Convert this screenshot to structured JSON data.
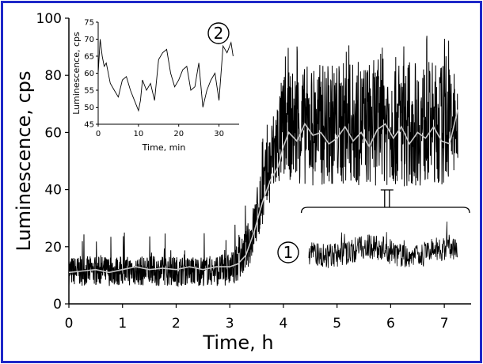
{
  "chart_data": [
    {
      "type": "line",
      "xlabel": "Time, h",
      "ylabel": "Luminescence, cps",
      "xlim": [
        0,
        7.5
      ],
      "ylim": [
        0,
        100
      ],
      "xticks": [
        "0",
        "1",
        "2",
        "3",
        "4",
        "5",
        "6",
        "7"
      ],
      "yticks": [
        "0",
        "20",
        "40",
        "60",
        "80",
        "100"
      ],
      "grid": false,
      "series": [
        {
          "role": "raw-signal",
          "color": "#000000",
          "envelope": {
            "x": [
              0,
              0.5,
              1,
              1.5,
              2,
              2.5,
              3,
              3.2,
              3.4,
              3.6,
              3.8,
              4,
              4.5,
              5,
              5.5,
              6,
              6.5,
              7,
              7.25
            ],
            "low": [
              6,
              6,
              6,
              6,
              6,
              6,
              6,
              8,
              14,
              25,
              35,
              42,
              40,
              40,
              40,
              40,
              40,
              40,
              40
            ],
            "high": [
              17,
              17,
              17,
              17,
              17,
              17,
              18,
              22,
              32,
              50,
              68,
              82,
              85,
              86,
              86,
              88,
              86,
              86,
              84
            ]
          }
        },
        {
          "role": "smoothed-average",
          "color": "#c8c8c8",
          "x": [
            0,
            0.25,
            0.5,
            0.75,
            1,
            1.25,
            1.5,
            1.75,
            2,
            2.25,
            2.5,
            2.75,
            3,
            3.15,
            3.3,
            3.45,
            3.6,
            3.75,
            3.9,
            4,
            4.1,
            4.25,
            4.4,
            4.55,
            4.7,
            4.85,
            5,
            5.15,
            5.3,
            5.45,
            5.6,
            5.75,
            5.9,
            6.05,
            6.2,
            6.35,
            6.5,
            6.65,
            6.8,
            6.95,
            7.1,
            7.25
          ],
          "y": [
            11,
            11.5,
            12,
            11,
            12,
            13,
            12,
            12.5,
            12,
            13,
            12,
            13,
            13,
            14,
            17,
            25,
            35,
            43,
            48,
            55,
            60,
            57,
            63,
            59,
            60,
            56,
            58,
            62,
            57,
            60,
            55,
            61,
            63,
            58,
            62,
            56,
            60,
            58,
            62,
            57,
            56,
            68
          ]
        }
      ],
      "bracket_range": [
        4.6,
        7.5
      ],
      "annotations": [
        "1",
        "2"
      ]
    },
    {
      "type": "line",
      "role": "inset",
      "xlabel": "Time, min",
      "ylabel": "Luminescence, cps",
      "xlim": [
        0,
        35
      ],
      "ylim": [
        45,
        75
      ],
      "xticks": [
        "0",
        "10",
        "20",
        "30"
      ],
      "yticks": [
        "45",
        "50",
        "55",
        "60",
        "65",
        "70",
        "75"
      ],
      "series": [
        {
          "color": "#000000",
          "x": [
            0,
            0.5,
            1,
            1.5,
            2,
            3,
            4,
            5,
            6,
            7,
            8,
            9,
            10,
            10.5,
            11,
            12,
            13,
            14,
            15,
            16,
            17,
            18,
            19,
            20,
            21,
            22,
            23,
            24,
            25,
            26,
            27,
            28,
            29,
            30,
            31,
            32,
            33,
            33.5
          ],
          "y": [
            60,
            70,
            65,
            62,
            63,
            57,
            55,
            53,
            58,
            59,
            55,
            52,
            49,
            52,
            58,
            55,
            57,
            52,
            64,
            66,
            67,
            60,
            56,
            58,
            61,
            62,
            55,
            56,
            63,
            50,
            55,
            58,
            60,
            52,
            68,
            66,
            69,
            65
          ]
        }
      ]
    }
  ]
}
